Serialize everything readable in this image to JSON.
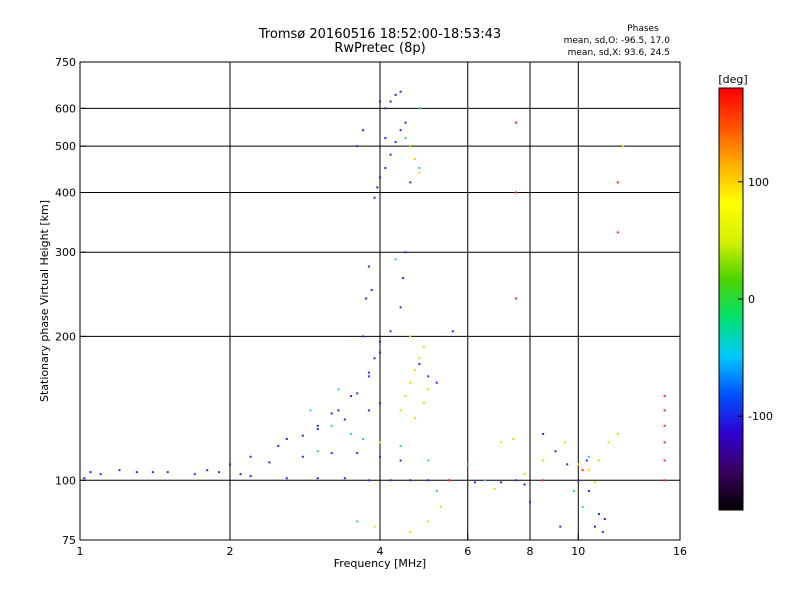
{
  "chart_data": {
    "type": "scatter",
    "title": "Tromsø 20160516 18:52:00-18:53:43",
    "subtitle": "RwPretec (8p)",
    "phase_stats": {
      "label": "Phases",
      "o_line": "mean, sd,O: -96.5, 17.0",
      "x_line": "mean, sd,X:  93.6, 24.5"
    },
    "xlabel": "Frequency [MHz]",
    "ylabel": "Stationary phase Virtual Height [km]",
    "x_scale": "log",
    "y_scale": "log",
    "xlim": [
      1,
      16
    ],
    "ylim": [
      75,
      750
    ],
    "x_ticks": [
      1,
      2,
      4,
      6,
      8,
      10,
      16
    ],
    "x_tick_labels": [
      "1",
      "2",
      "4",
      "6",
      "8",
      "10",
      "16"
    ],
    "y_ticks": [
      75,
      100,
      200,
      300,
      400,
      500,
      600,
      750
    ],
    "y_tick_labels": [
      "75",
      "100",
      "200",
      "300",
      "400",
      "500",
      "600",
      "750"
    ],
    "x_gridlines": [
      2,
      4,
      6,
      8,
      10
    ],
    "y_gridlines": [
      100,
      200,
      300,
      400,
      500,
      600
    ],
    "colorbar": {
      "label": "[deg]",
      "range": [
        -180,
        180
      ],
      "ticks": [
        100,
        0,
        -100
      ],
      "tick_labels": [
        "100",
        "0",
        "-100"
      ],
      "stops": [
        "#000000",
        "#3a005e",
        "#2f00d0",
        "#0050ff",
        "#00c8ff",
        "#00e070",
        "#4ad400",
        "#d4f000",
        "#ffff00",
        "#ffb000",
        "#ff5000",
        "#ff0000"
      ]
    },
    "series": [
      {
        "color": "#2030e8",
        "points": [
          [
            1.02,
            101
          ],
          [
            1.05,
            104
          ],
          [
            1.1,
            103
          ],
          [
            1.2,
            105
          ],
          [
            1.3,
            104
          ],
          [
            1.5,
            104
          ],
          [
            1.7,
            103
          ],
          [
            1.9,
            104
          ],
          [
            2.0,
            108
          ],
          [
            2.2,
            112
          ],
          [
            2.5,
            118
          ],
          [
            2.8,
            124
          ],
          [
            3.0,
            130
          ],
          [
            3.3,
            140
          ],
          [
            3.6,
            152
          ],
          [
            3.8,
            165
          ],
          [
            3.9,
            180
          ],
          [
            4.0,
            195
          ],
          [
            2.2,
            102
          ],
          [
            2.6,
            101
          ],
          [
            3.0,
            101
          ],
          [
            3.4,
            101
          ],
          [
            3.8,
            100
          ],
          [
            4.2,
            100
          ],
          [
            4.6,
            100
          ],
          [
            5.0,
            100
          ],
          [
            5.5,
            100
          ],
          [
            6.2,
            99
          ],
          [
            7.0,
            99
          ],
          [
            7.5,
            100
          ],
          [
            2.8,
            112
          ],
          [
            3.2,
            114
          ],
          [
            3.6,
            114
          ],
          [
            4.0,
            112
          ],
          [
            4.4,
            110
          ],
          [
            2.6,
            122
          ],
          [
            3.0,
            128
          ],
          [
            3.4,
            134
          ],
          [
            3.8,
            140
          ],
          [
            4.0,
            145
          ],
          [
            3.2,
            138
          ],
          [
            3.5,
            150
          ],
          [
            3.8,
            168
          ],
          [
            4.0,
            185
          ],
          [
            4.2,
            205
          ],
          [
            4.4,
            230
          ],
          [
            4.45,
            265
          ],
          [
            4.5,
            300
          ],
          [
            3.7,
            200
          ],
          [
            3.75,
            240
          ],
          [
            3.8,
            280
          ],
          [
            3.85,
            250
          ],
          [
            3.9,
            390
          ],
          [
            3.95,
            410
          ],
          [
            4.0,
            430
          ],
          [
            4.1,
            450
          ],
          [
            4.2,
            480
          ],
          [
            4.3,
            510
          ],
          [
            4.4,
            540
          ],
          [
            4.1,
            600
          ],
          [
            4.2,
            620
          ],
          [
            4.3,
            640
          ],
          [
            4.4,
            650
          ],
          [
            4.0,
            620
          ],
          [
            4.1,
            520
          ],
          [
            3.6,
            500
          ],
          [
            3.7,
            540
          ],
          [
            4.5,
            560
          ],
          [
            4.6,
            500
          ],
          [
            4.6,
            420
          ],
          [
            4.8,
            175
          ],
          [
            5.0,
            165
          ],
          [
            5.2,
            160
          ],
          [
            5.6,
            205
          ],
          [
            8.5,
            125
          ],
          [
            9.0,
            115
          ],
          [
            9.5,
            108
          ],
          [
            10.0,
            100
          ],
          [
            10.5,
            95
          ],
          [
            11.0,
            85
          ],
          [
            8.0,
            90
          ],
          [
            9.2,
            80
          ],
          [
            10.4,
            110
          ],
          [
            11.2,
            78
          ],
          [
            2.4,
            109
          ],
          [
            2.1,
            103
          ],
          [
            1.8,
            105
          ],
          [
            1.4,
            104
          ]
        ]
      },
      {
        "color": "#35c0ff",
        "points": [
          [
            2.9,
            140
          ],
          [
            3.2,
            130
          ],
          [
            3.5,
            125
          ],
          [
            3.7,
            122
          ],
          [
            4.4,
            118
          ],
          [
            5.0,
            110
          ],
          [
            6.5,
            100
          ],
          [
            9.8,
            95
          ],
          [
            10.2,
            88
          ],
          [
            10.5,
            112
          ],
          [
            3.3,
            155
          ],
          [
            4.8,
            450
          ],
          [
            4.3,
            290
          ]
        ]
      },
      {
        "color": "#ffd400",
        "points": [
          [
            4.4,
            140
          ],
          [
            4.5,
            150
          ],
          [
            4.6,
            160
          ],
          [
            4.7,
            170
          ],
          [
            4.8,
            180
          ],
          [
            4.9,
            190
          ],
          [
            4.6,
            200
          ],
          [
            4.7,
            135
          ],
          [
            4.9,
            145
          ],
          [
            5.0,
            155
          ],
          [
            4.6,
            500
          ],
          [
            4.7,
            470
          ],
          [
            4.8,
            440
          ],
          [
            5.5,
            100
          ],
          [
            7.0,
            120
          ],
          [
            7.4,
            122
          ],
          [
            7.8,
            103
          ],
          [
            8.5,
            110
          ],
          [
            9.4,
            120
          ],
          [
            10.0,
            108
          ],
          [
            10.5,
            105
          ],
          [
            11.0,
            110
          ],
          [
            11.5,
            120
          ],
          [
            12.0,
            125
          ],
          [
            12.3,
            500
          ],
          [
            4.0,
            120
          ],
          [
            5.3,
            88
          ],
          [
            6.8,
            96
          ],
          [
            10.8,
            99
          ],
          [
            3.9,
            80
          ],
          [
            4.6,
            78
          ],
          [
            5.0,
            82
          ]
        ]
      },
      {
        "color": "#ff2a10",
        "points": [
          [
            7.5,
            560
          ],
          [
            7.5,
            400
          ],
          [
            7.5,
            240
          ],
          [
            12.0,
            420
          ],
          [
            12.0,
            330
          ],
          [
            14.9,
            150
          ],
          [
            14.9,
            140
          ],
          [
            14.9,
            130
          ],
          [
            14.9,
            120
          ],
          [
            14.9,
            110
          ],
          [
            14.9,
            100
          ],
          [
            5.5,
            100
          ],
          [
            8.5,
            100
          ],
          [
            10.2,
            105
          ]
        ]
      },
      {
        "color": "#40d060",
        "points": [
          [
            3.0,
            115
          ],
          [
            4.8,
            600
          ],
          [
            4.5,
            520
          ],
          [
            3.6,
            82
          ],
          [
            5.2,
            95
          ],
          [
            6.0,
            108
          ]
        ]
      },
      {
        "color": "#6a00b0",
        "points": [
          [
            10.8,
            80
          ],
          [
            11.3,
            83
          ],
          [
            7.8,
            98
          ]
        ]
      }
    ]
  }
}
